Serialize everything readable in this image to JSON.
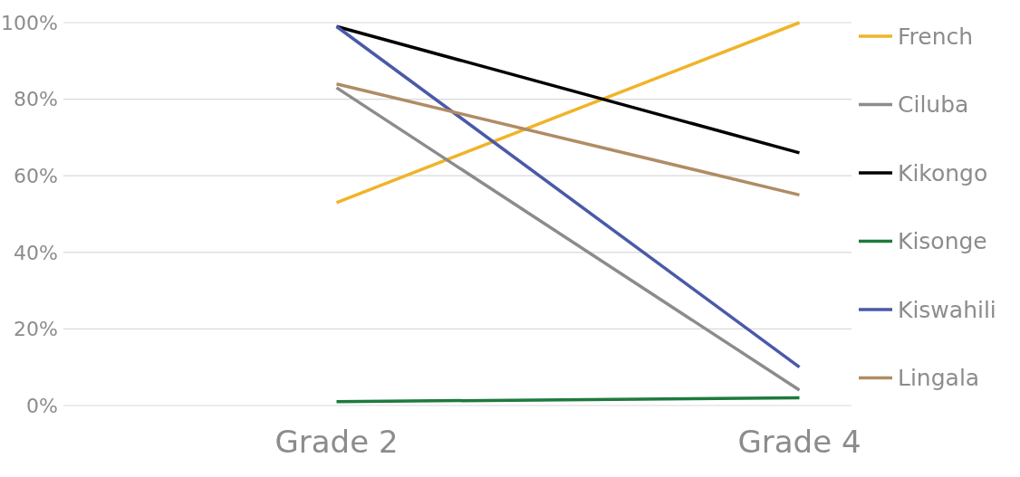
{
  "chart_data": {
    "type": "line",
    "categories": [
      "Grade 2",
      "Grade 4"
    ],
    "series": [
      {
        "name": "French",
        "color": "#f0b428",
        "values": [
          53,
          100
        ]
      },
      {
        "name": "Ciluba",
        "color": "#8c8c8c",
        "values": [
          83,
          4
        ]
      },
      {
        "name": "Kikongo",
        "color": "#000000",
        "values": [
          99,
          66
        ]
      },
      {
        "name": "Kisonge",
        "color": "#1e7a3e",
        "values": [
          1,
          2
        ]
      },
      {
        "name": "Kiswahili",
        "color": "#4a5aa8",
        "values": [
          99,
          10
        ]
      },
      {
        "name": "Lingala",
        "color": "#b08c64",
        "values": [
          84,
          55
        ]
      }
    ],
    "ylim": [
      0,
      100
    ],
    "yticks": [
      {
        "value": 0,
        "label": "0%"
      },
      {
        "value": 20,
        "label": "20%"
      },
      {
        "value": 40,
        "label": "40%"
      },
      {
        "value": 60,
        "label": "60%"
      },
      {
        "value": 80,
        "label": "80%"
      },
      {
        "value": 100,
        "label": "100%"
      }
    ],
    "grid": "y",
    "legend": "right",
    "marker": "none",
    "line_style": "solid"
  }
}
